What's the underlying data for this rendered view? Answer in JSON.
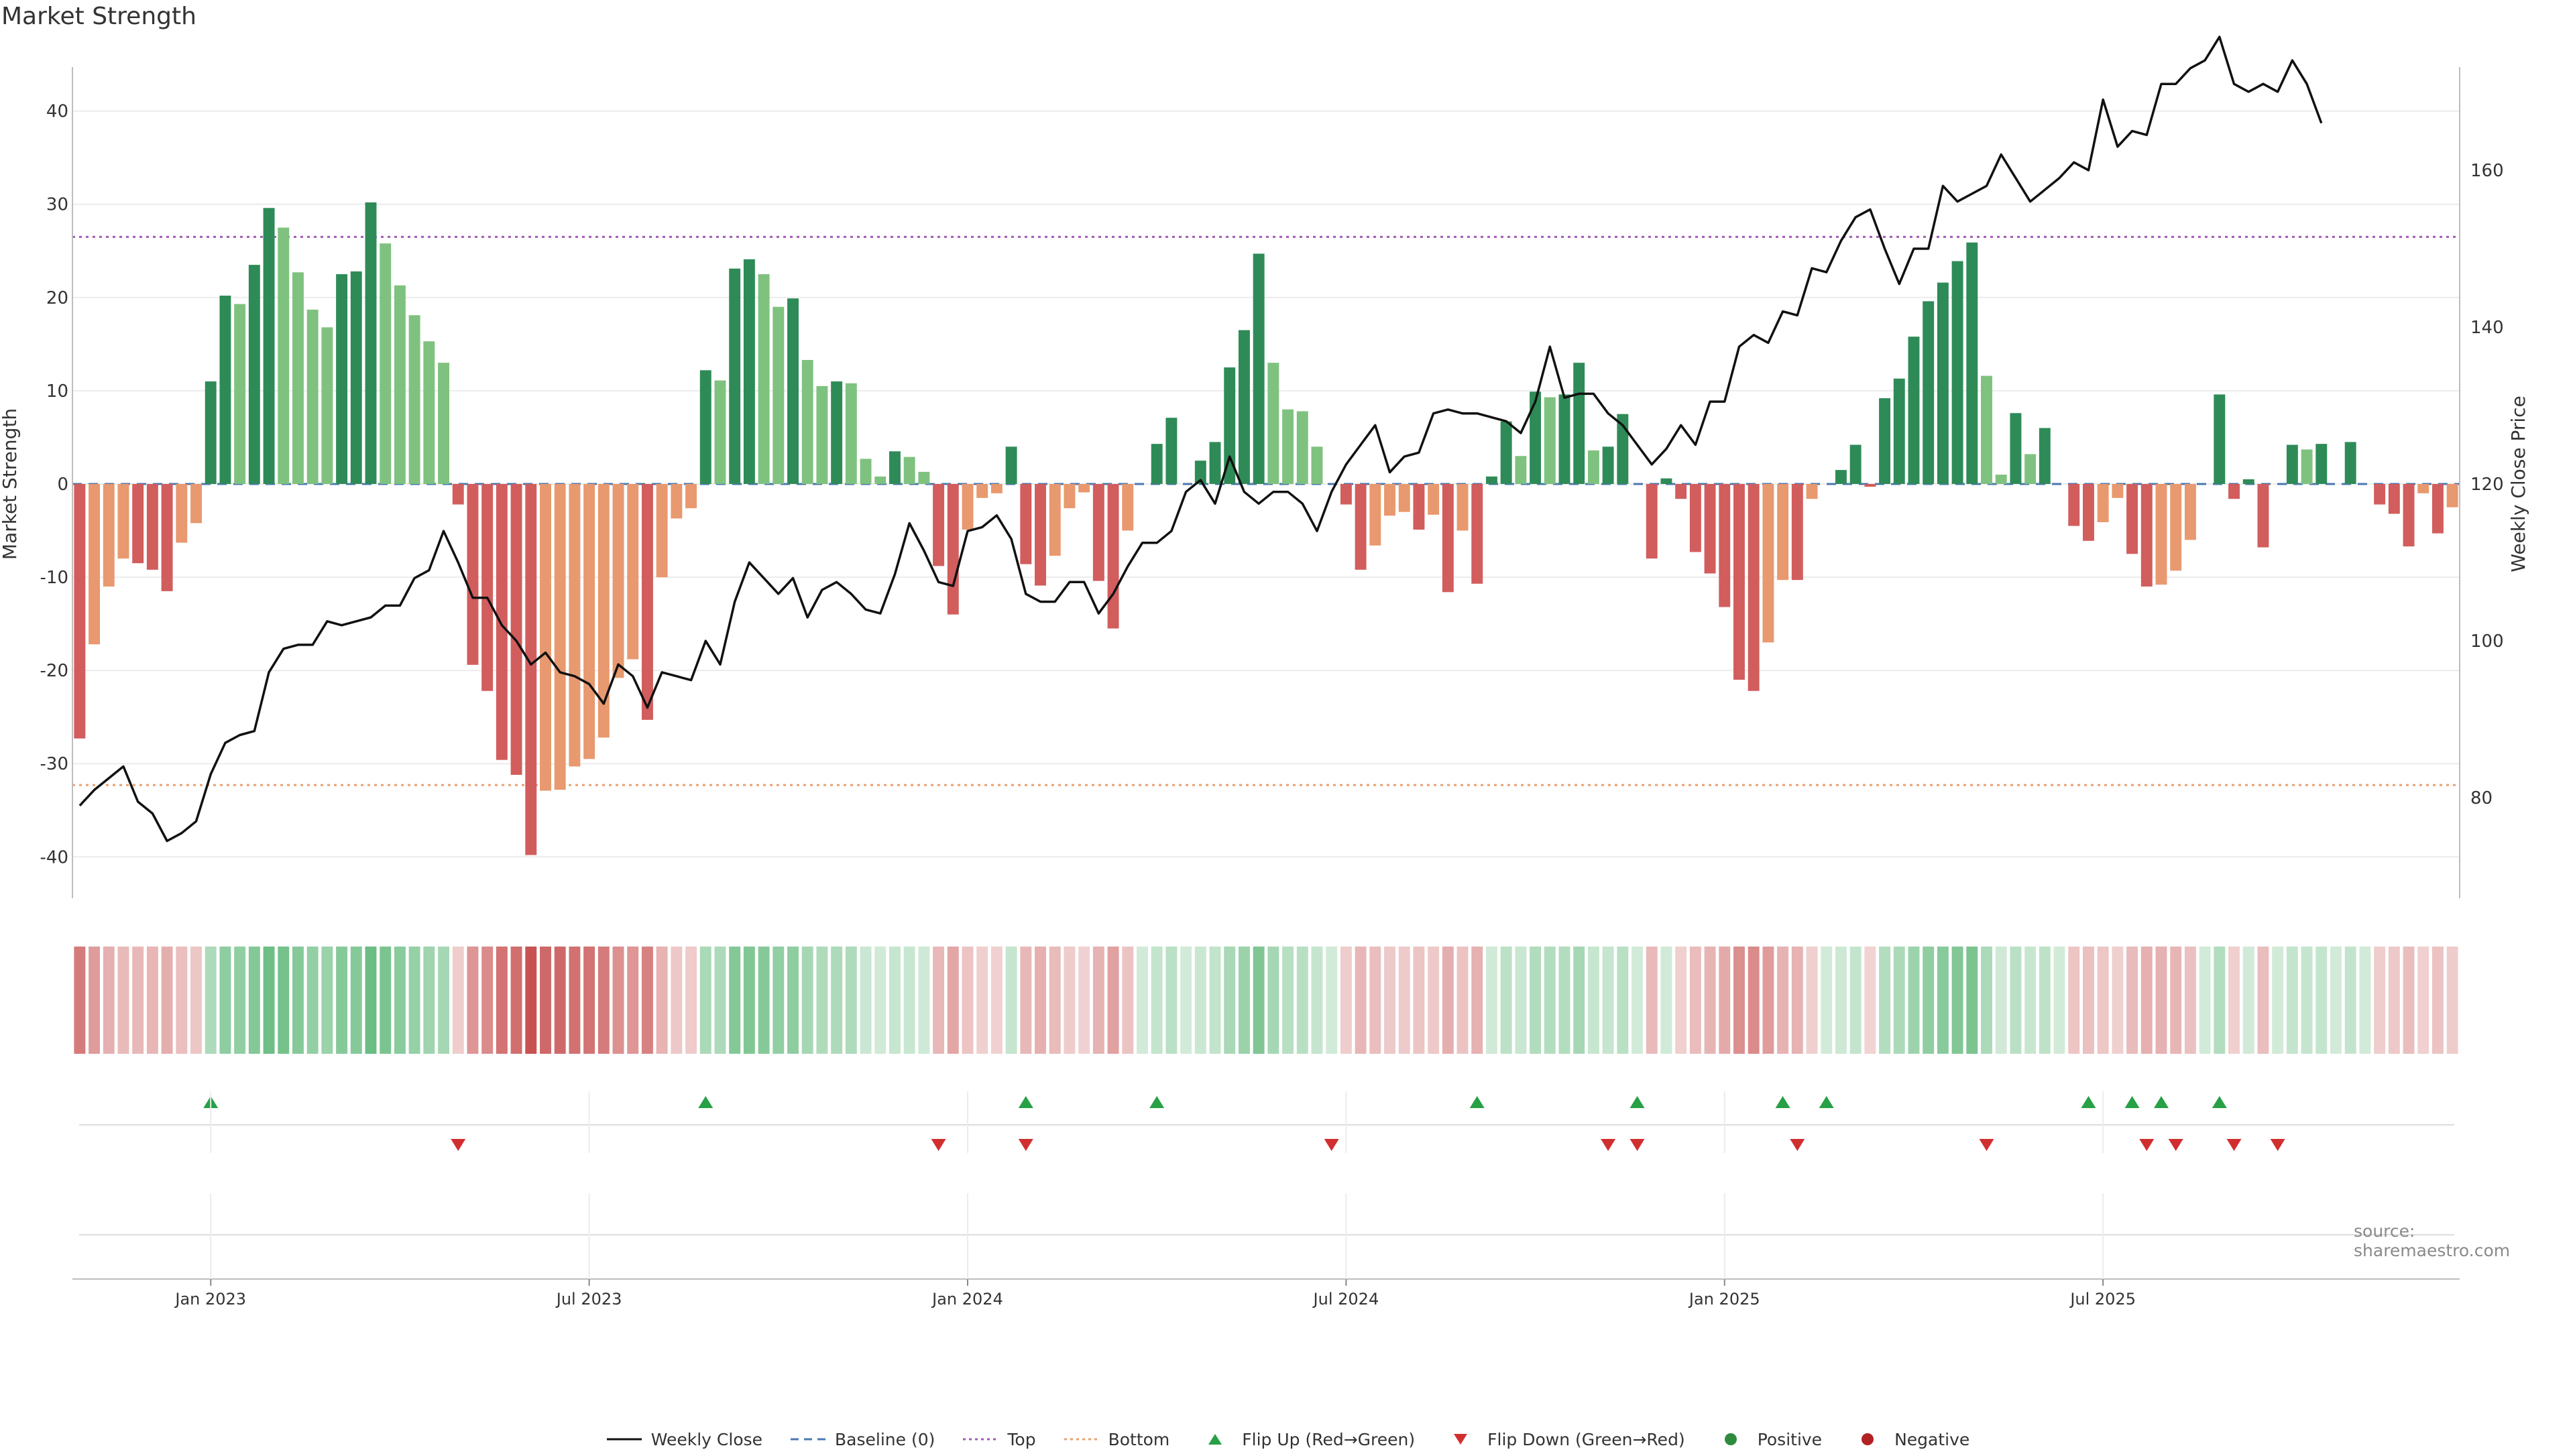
{
  "title": "Market Strength",
  "source": "source: sharemaestro.com",
  "legend": [
    {
      "label": "Weekly Close",
      "symbol": "line",
      "color": "#111111"
    },
    {
      "label": "Baseline (0)",
      "symbol": "dash",
      "color": "#4a78b0"
    },
    {
      "label": "Top",
      "symbol": "dots",
      "color": "#a45bb8"
    },
    {
      "label": "Bottom",
      "symbol": "dots",
      "color": "#e8a070"
    },
    {
      "label": "Flip Up (Red→Green)",
      "symbol": "tri-up",
      "color": "#27a046"
    },
    {
      "label": "Flip Down (Green→Red)",
      "symbol": "tri-down",
      "color": "#d12f2f"
    },
    {
      "label": "Positive",
      "symbol": "dot",
      "color": "#2e8b3e"
    },
    {
      "label": "Negative",
      "symbol": "dot",
      "color": "#b22222"
    }
  ],
  "chart_data": {
    "type": "bar",
    "title": "Market Strength",
    "xlabel": "",
    "ylabel": "Market Strength",
    "y2label": "Weekly Close Price",
    "ylim": [
      -43,
      44
    ],
    "y2lim": [
      68.9,
      172.3
    ],
    "yticks": [
      40,
      30,
      20,
      10,
      0,
      -10,
      -20,
      -30,
      -40
    ],
    "y2ticks": [
      160,
      140,
      120,
      100,
      80
    ],
    "xticks": [
      {
        "week": 9,
        "label": "Jan 2023"
      },
      {
        "week": 35,
        "label": "Jul 2023"
      },
      {
        "week": 61,
        "label": "Jan 2024"
      },
      {
        "week": 87,
        "label": "Jul 2024"
      },
      {
        "week": 113,
        "label": "Jan 2025"
      },
      {
        "week": 139,
        "label": "Jul 2025"
      }
    ],
    "top_level": 26.5,
    "bottom_level": -32.3,
    "colors": {
      "pos_strong": "#2e8b57",
      "pos_light": "#7fc27f",
      "neg_strong": "#d25d5d",
      "neg_light": "#e8996f",
      "baseline": "#4a78b0",
      "top": "#a45bb8",
      "bottom": "#e8a070",
      "price": "#111111",
      "flip_up": "#27a046",
      "flip_down": "#d12f2f"
    },
    "series": [
      {
        "name": "Market Strength",
        "values": [
          -27.3,
          -17.2,
          -11,
          -8,
          -8.5,
          -9.2,
          -11.5,
          -6.3,
          -4.2,
          11,
          20.2,
          19.3,
          23.5,
          29.6,
          27.5,
          22.7,
          18.7,
          16.8,
          22.5,
          22.8,
          30.2,
          25.8,
          21.3,
          18.1,
          15.3,
          13,
          -2.2,
          -19.4,
          -22.2,
          -29.6,
          -31.2,
          -39.8,
          -32.9,
          -32.8,
          -30.3,
          -29.5,
          -27.2,
          -20.8,
          -18.8,
          -25.3,
          -10,
          -3.7,
          -2.6,
          12.2,
          11.1,
          23.1,
          24.1,
          22.5,
          19,
          19.9,
          13.3,
          10.5,
          11,
          10.8,
          2.7,
          0.8,
          3.5,
          2.9,
          1.3,
          -8.8,
          -14,
          -4.9,
          -1.5,
          -1,
          4,
          -8.6,
          -10.9,
          -7.7,
          -2.6,
          -0.9,
          -10.4,
          -15.5,
          -5,
          0,
          4.3,
          7.1,
          0,
          2.5,
          4.5,
          12.5,
          16.5,
          24.7,
          13,
          8,
          7.8,
          4,
          0,
          -2.2,
          -9.2,
          -6.6,
          -3.4,
          -3,
          -4.9,
          -3.3,
          -11.6,
          -5,
          -10.7,
          0.8,
          6.7,
          3,
          9.9,
          9.3,
          9.6,
          13,
          3.6,
          4,
          7.5,
          0,
          -8,
          0.6,
          -1.6,
          -7.3,
          -9.6,
          -13.2,
          -21,
          -22.2,
          -17,
          -10.3,
          -10.3,
          -1.6,
          0,
          1.5,
          4.2,
          -0.3,
          9.2,
          11.3,
          15.8,
          19.6,
          21.6,
          23.9,
          25.9,
          11.6,
          1,
          7.6,
          3.2,
          6,
          0,
          -4.5,
          -6.1,
          -4.1,
          -1.5,
          -7.5,
          -11,
          -10.8,
          -9.3,
          -6,
          0,
          9.6,
          -1.6,
          0.5,
          -6.8,
          0,
          4.2,
          3.7,
          4.3,
          0,
          4.5,
          0,
          -2.2,
          -3.2,
          -6.7,
          -1,
          -5.3,
          -2.5
        ]
      },
      {
        "name": "Weekly Close",
        "values": [
          79,
          81,
          82.5,
          84,
          79.5,
          78,
          74.5,
          75.5,
          77,
          83,
          87,
          88,
          88.5,
          96,
          99,
          99.5,
          99.5,
          102.5,
          102,
          102.5,
          103,
          104.5,
          104.5,
          108,
          109,
          114,
          110,
          105.5,
          105.5,
          102,
          100,
          97,
          98.5,
          96,
          95.5,
          94.5,
          92,
          97,
          95.5,
          91.5,
          96,
          95.5,
          95,
          100,
          97,
          105,
          110,
          108,
          106,
          108,
          103,
          106.5,
          107.5,
          106,
          104,
          103.5,
          108.5,
          115,
          111.5,
          107.5,
          107,
          114,
          114.5,
          116,
          113,
          106,
          105,
          105,
          107.5,
          107.5,
          103.5,
          106,
          109.5,
          112.5,
          112.5,
          114,
          119,
          120.5,
          117.5,
          123.5,
          119,
          117.5,
          119,
          119,
          117.5,
          114,
          119,
          122.5,
          125,
          127.5,
          121.5,
          123.5,
          124,
          129,
          129.5,
          129,
          129,
          128.5,
          128,
          126.5,
          130.5,
          137.5,
          131,
          131.5,
          131.5,
          129,
          127.5,
          125,
          122.5,
          124.5,
          127.5,
          125,
          130.5,
          130.5,
          137.5,
          139,
          138,
          142,
          141.5,
          147.5,
          147,
          151,
          154,
          155,
          150,
          145.5,
          150,
          150,
          158,
          156,
          157,
          158,
          162,
          159,
          156,
          157.5,
          159,
          161,
          160,
          169,
          163,
          165,
          164.5,
          171,
          171,
          173,
          174,
          177,
          171,
          170,
          171,
          170,
          174,
          171,
          166
        ]
      }
    ],
    "flips_up": [
      9,
      43,
      65,
      74,
      96,
      107,
      117,
      120,
      138,
      141,
      143,
      147
    ],
    "flips_down": [
      26,
      59,
      65,
      86,
      105,
      107,
      118,
      131,
      142,
      144,
      148,
      151
    ]
  }
}
